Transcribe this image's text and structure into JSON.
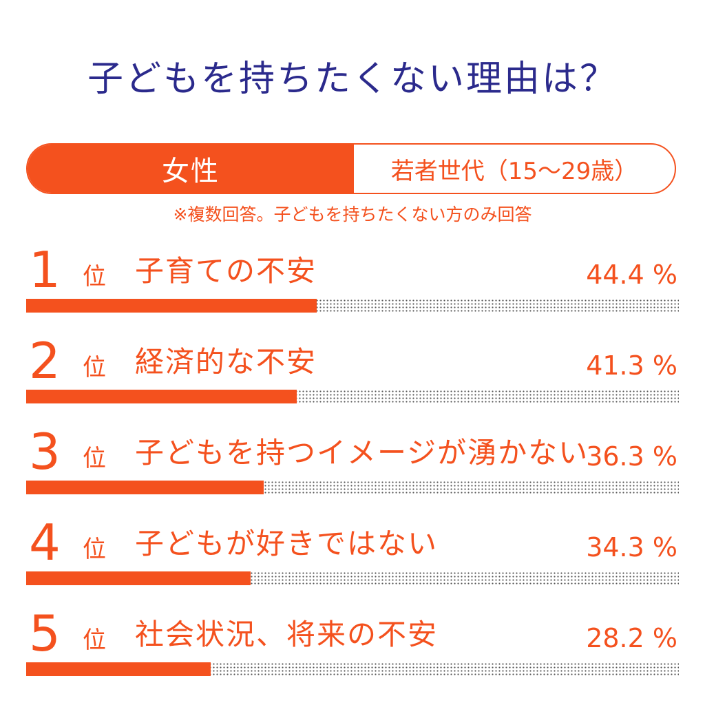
{
  "title": "子どもを持ちたくない理由は？",
  "header": {
    "left_label": "女性",
    "right_label": "若者世代（15～29歳）"
  },
  "note": "※複数回答。子どもを持ちたくない方のみ回答",
  "chart_data": {
    "type": "bar",
    "title": "子どもを持ちたくない理由は？",
    "rank_unit": "位",
    "pct_unit": "%",
    "ylim": [
      0,
      100
    ],
    "items": [
      {
        "rank": "1",
        "label": "子育ての不安",
        "value": 44.4,
        "value_text": "44.4 %"
      },
      {
        "rank": "2",
        "label": "経済的な不安",
        "value": 41.3,
        "value_text": "41.3 %"
      },
      {
        "rank": "3",
        "label": "子どもを持つイメージが湧かない",
        "value": 36.3,
        "value_text": "36.3 %"
      },
      {
        "rank": "4",
        "label": "子どもが好きではない",
        "value": 34.3,
        "value_text": "34.3 %"
      },
      {
        "rank": "5",
        "label": "社会状況、将来の不安",
        "value": 28.2,
        "value_text": "28.2 %"
      }
    ]
  },
  "colors": {
    "accent": "#f4511e",
    "title": "#2b2a8c"
  }
}
